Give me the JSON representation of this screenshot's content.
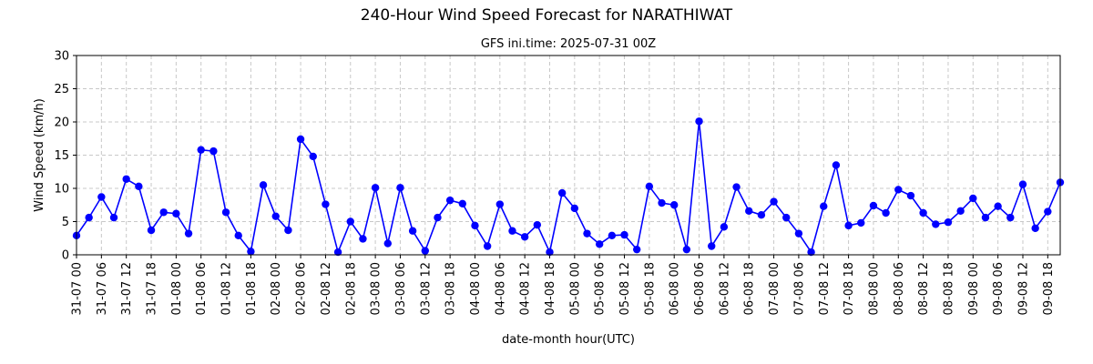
{
  "chart_data": {
    "type": "line",
    "title": "240-Hour Wind Speed Forecast for NARATHIWAT",
    "subtitle": "GFS ini.time: 2025-07-31 00Z",
    "xlabel": "date-month hour(UTC)",
    "ylabel": "Wind Speed (km/h)",
    "ylim": [
      0,
      30
    ],
    "yticks": [
      0,
      5,
      10,
      15,
      20,
      25,
      30
    ],
    "grid": true,
    "color": "#0000ff",
    "x": [
      "31-07 00",
      "31-07 03",
      "31-07 06",
      "31-07 09",
      "31-07 12",
      "31-07 15",
      "31-07 18",
      "31-07 21",
      "01-08 00",
      "01-08 03",
      "01-08 06",
      "01-08 09",
      "01-08 12",
      "01-08 15",
      "01-08 18",
      "01-08 21",
      "02-08 00",
      "02-08 03",
      "02-08 06",
      "02-08 09",
      "02-08 12",
      "02-08 15",
      "02-08 18",
      "02-08 21",
      "03-08 00",
      "03-08 03",
      "03-08 06",
      "03-08 09",
      "03-08 12",
      "03-08 15",
      "03-08 18",
      "03-08 21",
      "04-08 00",
      "04-08 03",
      "04-08 06",
      "04-08 09",
      "04-08 12",
      "04-08 15",
      "04-08 18",
      "04-08 21",
      "05-08 00",
      "05-08 03",
      "05-08 06",
      "05-08 09",
      "05-08 12",
      "05-08 15",
      "05-08 18",
      "05-08 21",
      "06-08 00",
      "06-08 03",
      "06-08 06",
      "06-08 09",
      "06-08 12",
      "06-08 15",
      "06-08 18",
      "06-08 21",
      "07-08 00",
      "07-08 03",
      "07-08 06",
      "07-08 09",
      "07-08 12",
      "07-08 15",
      "07-08 18",
      "07-08 21",
      "08-08 00",
      "08-08 03",
      "08-08 06",
      "08-08 09",
      "08-08 12",
      "08-08 15",
      "08-08 18",
      "08-08 21",
      "09-08 00",
      "09-08 03",
      "09-08 06",
      "09-08 09",
      "09-08 12",
      "09-08 15",
      "09-08 18",
      "09-08 21"
    ],
    "xtick_labels": [
      "31-07 00",
      "31-07 06",
      "31-07 12",
      "31-07 18",
      "01-08 00",
      "01-08 06",
      "01-08 12",
      "01-08 18",
      "02-08 00",
      "02-08 06",
      "02-08 12",
      "02-08 18",
      "03-08 00",
      "03-08 06",
      "03-08 12",
      "03-08 18",
      "04-08 00",
      "04-08 06",
      "04-08 12",
      "04-08 18",
      "05-08 00",
      "05-08 06",
      "05-08 12",
      "05-08 18",
      "06-08 00",
      "06-08 06",
      "06-08 12",
      "06-08 18",
      "07-08 00",
      "07-08 06",
      "07-08 12",
      "07-08 18",
      "08-08 00",
      "08-08 06",
      "08-08 12",
      "08-08 18",
      "09-08 00",
      "09-08 06",
      "09-08 12",
      "09-08 18"
    ],
    "values": [
      2.9,
      5.6,
      8.7,
      5.6,
      11.4,
      10.3,
      3.7,
      6.4,
      6.2,
      3.2,
      15.8,
      15.6,
      6.4,
      2.9,
      0.5,
      10.5,
      5.8,
      3.7,
      17.4,
      14.8,
      7.6,
      0.4,
      5.0,
      2.4,
      10.1,
      1.7,
      10.1,
      3.6,
      0.6,
      5.6,
      8.2,
      7.7,
      4.4,
      1.3,
      7.6,
      3.6,
      2.7,
      4.5,
      0.4,
      9.3,
      7.0,
      3.2,
      1.6,
      2.9,
      3.0,
      0.8,
      10.3,
      7.8,
      7.5,
      0.8,
      20.1,
      1.3,
      4.2,
      10.2,
      6.6,
      6.0,
      8.0,
      5.6,
      3.2,
      0.4,
      7.3,
      13.5,
      4.4,
      4.8,
      7.4,
      6.3,
      9.8,
      8.9,
      6.3,
      4.6,
      4.9,
      6.6,
      8.5,
      5.6,
      7.3,
      5.6,
      10.6,
      4.0,
      6.5,
      10.9
    ]
  }
}
